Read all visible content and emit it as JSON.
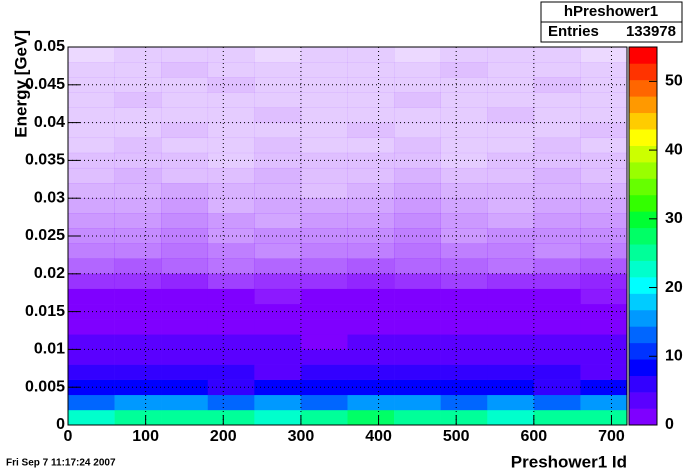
{
  "chart_data": {
    "type": "heatmap",
    "x_label": "Preshower1 Id",
    "y_label": "Energy [GeV]",
    "xlim": [
      0,
      720
    ],
    "ylim": [
      0,
      0.05
    ],
    "zlim": [
      0,
      55
    ],
    "xticks": [
      0,
      100,
      200,
      300,
      400,
      500,
      600,
      700
    ],
    "yticks": [
      0,
      0.005,
      0.01,
      0.015,
      0.02,
      0.025,
      0.03,
      0.035,
      0.04,
      0.045,
      0.05
    ],
    "zticks": [
      0,
      10,
      20,
      30,
      40,
      50
    ],
    "grid": true,
    "palette": [
      "#7f00ff",
      "#5a00ff",
      "#3300ff",
      "#0000ff",
      "#0033ff",
      "#0066ff",
      "#0099ff",
      "#00ccff",
      "#00ffff",
      "#00ffcc",
      "#00ff99",
      "#00ff66",
      "#00ff33",
      "#33ff00",
      "#66ff00",
      "#99ff00",
      "#ccff00",
      "#ffff00",
      "#ffcc00",
      "#ff9900",
      "#ff6600",
      "#ff3300",
      "#ff0000"
    ],
    "z": [
      [
        22,
        25,
        24,
        26,
        23,
        25,
        27,
        24,
        25,
        23,
        26,
        24
      ],
      [
        14,
        15,
        16,
        14,
        15,
        13,
        15,
        16,
        14,
        15,
        14,
        15
      ],
      [
        8,
        9,
        8,
        7,
        8,
        9,
        8,
        8,
        9,
        8,
        7,
        8
      ],
      [
        5,
        5,
        6,
        5,
        4,
        5,
        5,
        6,
        5,
        5,
        5,
        4
      ],
      [
        3.5,
        3.4,
        3.6,
        3.5,
        3.3,
        3.6,
        3.5,
        3.4,
        3.7,
        3.5,
        3.4,
        3.5
      ],
      [
        2.5,
        2.4,
        2.6,
        2.5,
        2.5,
        2.3,
        2.6,
        2.5,
        2.4,
        2.6,
        2.5,
        2.4
      ],
      [
        1.8,
        1.7,
        1.9,
        1.8,
        1.8,
        1.7,
        1.9,
        1.8,
        1.8,
        1.9,
        1.7,
        1.8
      ],
      [
        1.3,
        1.3,
        1.4,
        1.2,
        1.3,
        1.3,
        1.4,
        1.3,
        1.2,
        1.3,
        1.4,
        1.3
      ],
      [
        1.0,
        1.1,
        1.0,
        1.0,
        0.9,
        1.0,
        1.1,
        1.0,
        1.0,
        1.1,
        1.0,
        0.9
      ],
      [
        0.8,
        0.8,
        0.85,
        0.75,
        0.8,
        0.8,
        0.85,
        0.8,
        0.75,
        0.8,
        0.8,
        0.85
      ],
      [
        0.6,
        0.65,
        0.6,
        0.55,
        0.6,
        0.6,
        0.65,
        0.6,
        0.6,
        0.55,
        0.6,
        0.65
      ],
      [
        0.5,
        0.5,
        0.55,
        0.5,
        0.45,
        0.5,
        0.5,
        0.55,
        0.5,
        0.5,
        0.45,
        0.5
      ],
      [
        0.45,
        0.45,
        0.5,
        0.4,
        0.45,
        0.45,
        0.45,
        0.5,
        0.4,
        0.45,
        0.45,
        0.45
      ],
      [
        0.4,
        0.4,
        0.45,
        0.4,
        0.35,
        0.4,
        0.4,
        0.45,
        0.4,
        0.35,
        0.4,
        0.4
      ],
      [
        0.35,
        0.35,
        0.4,
        0.3,
        0.35,
        0.35,
        0.35,
        0.4,
        0.35,
        0.3,
        0.35,
        0.35
      ],
      [
        0.3,
        0.3,
        0.35,
        0.3,
        0.3,
        0.25,
        0.3,
        0.35,
        0.3,
        0.3,
        0.3,
        0.3
      ],
      [
        0.25,
        0.3,
        0.25,
        0.25,
        0.3,
        0.25,
        0.25,
        0.3,
        0.25,
        0.25,
        0.3,
        0.25
      ],
      [
        0.25,
        0.25,
        0.25,
        0.2,
        0.25,
        0.25,
        0.25,
        0.25,
        0.2,
        0.25,
        0.25,
        0.25
      ],
      [
        0.2,
        0.25,
        0.2,
        0.2,
        0.25,
        0.2,
        0.2,
        0.25,
        0.2,
        0.2,
        0.25,
        0.2
      ],
      [
        0.2,
        0.2,
        0.25,
        0.2,
        0.2,
        0.2,
        0.25,
        0.2,
        0.2,
        0.2,
        0.2,
        0.25
      ],
      [
        0.2,
        0.2,
        0.2,
        0.2,
        0.25,
        0.2,
        0.2,
        0.2,
        0.2,
        0.25,
        0.2,
        0.2
      ],
      [
        0.2,
        0.25,
        0.2,
        0.2,
        0.2,
        0.2,
        0.2,
        0.25,
        0.2,
        0.2,
        0.2,
        0.2
      ],
      [
        0.2,
        0.2,
        0.2,
        0.25,
        0.2,
        0.2,
        0.2,
        0.2,
        0.2,
        0.2,
        0.25,
        0.2
      ],
      [
        0.2,
        0.2,
        0.25,
        0.2,
        0.2,
        0.2,
        0.2,
        0.2,
        0.25,
        0.2,
        0.2,
        0.2
      ],
      [
        0.15,
        0.2,
        0.2,
        0.2,
        0.15,
        0.2,
        0.2,
        0.15,
        0.2,
        0.2,
        0.2,
        0.15
      ]
    ],
    "stats": {
      "title": "hPreshower1",
      "label": "Entries",
      "value": 133978
    },
    "date": "Fri Sep  7 11:17:24 2007"
  }
}
